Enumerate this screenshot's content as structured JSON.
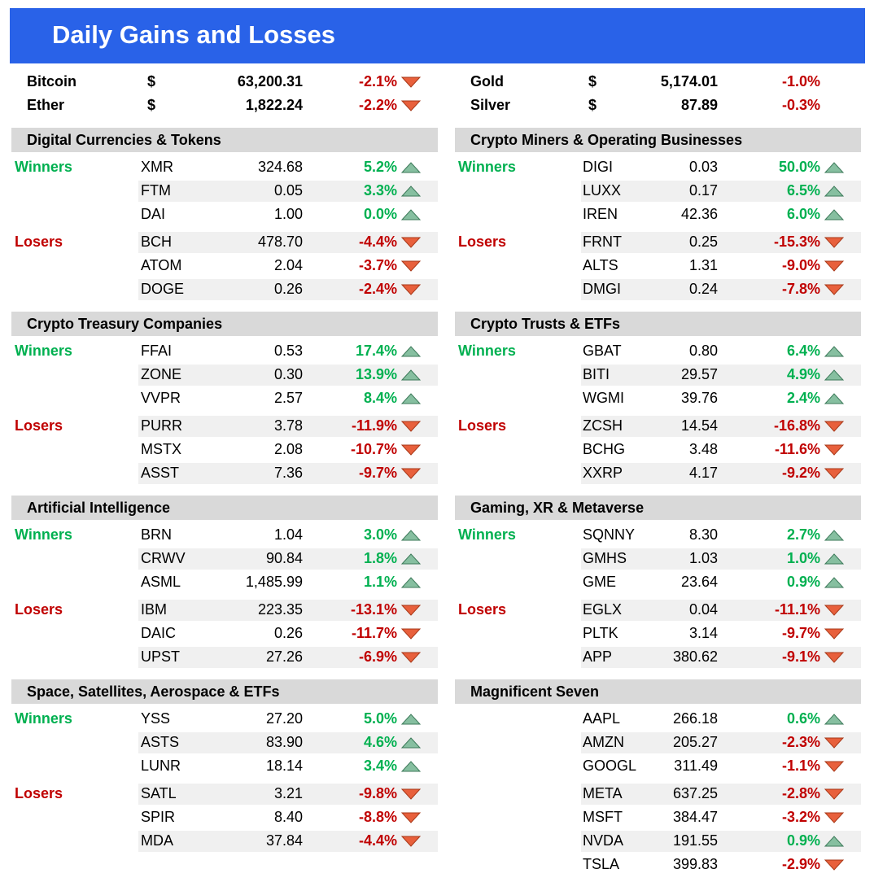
{
  "header": {
    "title": "Daily Gains and Losses"
  },
  "top": [
    {
      "arrows": true,
      "rows": [
        {
          "name": "Bitcoin",
          "currency": "$",
          "price": "63,200.31",
          "change": "-2.1%"
        },
        {
          "name": "Ether",
          "currency": "$",
          "price": "1,822.24",
          "change": "-2.2%"
        }
      ]
    },
    {
      "arrows": false,
      "rows": [
        {
          "name": "Gold",
          "currency": "$",
          "price": "5,174.01",
          "change": "-1.0%"
        },
        {
          "name": "Silver",
          "currency": "$",
          "price": "87.89",
          "change": "-0.3%"
        }
      ]
    }
  ],
  "sections": [
    {
      "title": "Digital Currencies & Tokens",
      "groups": [
        {
          "label": "Winners",
          "rows": [
            {
              "ticker": "XMR",
              "price": "324.68",
              "change": "5.2%"
            },
            {
              "ticker": "FTM",
              "price": "0.05",
              "change": "3.3%"
            },
            {
              "ticker": "DAI",
              "price": "1.00",
              "change": "0.0%"
            }
          ]
        },
        {
          "label": "Losers",
          "rows": [
            {
              "ticker": "BCH",
              "price": "478.70",
              "change": "-4.4%"
            },
            {
              "ticker": "ATOM",
              "price": "2.04",
              "change": "-3.7%"
            },
            {
              "ticker": "DOGE",
              "price": "0.26",
              "change": "-2.4%"
            }
          ]
        }
      ]
    },
    {
      "title": "Crypto Miners & Operating Businesses",
      "groups": [
        {
          "label": "Winners",
          "rows": [
            {
              "ticker": "DIGI",
              "price": "0.03",
              "change": "50.0%"
            },
            {
              "ticker": "LUXX",
              "price": "0.17",
              "change": "6.5%"
            },
            {
              "ticker": "IREN",
              "price": "42.36",
              "change": "6.0%"
            }
          ]
        },
        {
          "label": "Losers",
          "rows": [
            {
              "ticker": "FRNT",
              "price": "0.25",
              "change": "-15.3%"
            },
            {
              "ticker": "ALTS",
              "price": "1.31",
              "change": "-9.0%"
            },
            {
              "ticker": "DMGI",
              "price": "0.24",
              "change": "-7.8%"
            }
          ]
        }
      ]
    },
    {
      "title": "Crypto Treasury Companies",
      "groups": [
        {
          "label": "Winners",
          "rows": [
            {
              "ticker": "FFAI",
              "price": "0.53",
              "change": "17.4%"
            },
            {
              "ticker": "ZONE",
              "price": "0.30",
              "change": "13.9%"
            },
            {
              "ticker": "VVPR",
              "price": "2.57",
              "change": "8.4%"
            }
          ]
        },
        {
          "label": "Losers",
          "rows": [
            {
              "ticker": "PURR",
              "price": "3.78",
              "change": "-11.9%"
            },
            {
              "ticker": "MSTX",
              "price": "2.08",
              "change": "-10.7%"
            },
            {
              "ticker": "ASST",
              "price": "7.36",
              "change": "-9.7%"
            }
          ]
        }
      ]
    },
    {
      "title": "Crypto Trusts & ETFs",
      "groups": [
        {
          "label": "Winners",
          "rows": [
            {
              "ticker": "GBAT",
              "price": "0.80",
              "change": "6.4%"
            },
            {
              "ticker": "BITI",
              "price": "29.57",
              "change": "4.9%"
            },
            {
              "ticker": "WGMI",
              "price": "39.76",
              "change": "2.4%"
            }
          ]
        },
        {
          "label": "Losers",
          "rows": [
            {
              "ticker": "ZCSH",
              "price": "14.54",
              "change": "-16.8%"
            },
            {
              "ticker": "BCHG",
              "price": "3.48",
              "change": "-11.6%"
            },
            {
              "ticker": "XXRP",
              "price": "4.17",
              "change": "-9.2%"
            }
          ]
        }
      ]
    },
    {
      "title": "Artificial Intelligence",
      "groups": [
        {
          "label": "Winners",
          "rows": [
            {
              "ticker": "BRN",
              "price": "1.04",
              "change": "3.0%"
            },
            {
              "ticker": "CRWV",
              "price": "90.84",
              "change": "1.8%"
            },
            {
              "ticker": "ASML",
              "price": "1,485.99",
              "change": "1.1%"
            }
          ]
        },
        {
          "label": "Losers",
          "rows": [
            {
              "ticker": "IBM",
              "price": "223.35",
              "change": "-13.1%"
            },
            {
              "ticker": "DAIC",
              "price": "0.26",
              "change": "-11.7%"
            },
            {
              "ticker": "UPST",
              "price": "27.26",
              "change": "-6.9%"
            }
          ]
        }
      ]
    },
    {
      "title": "Gaming, XR & Metaverse",
      "groups": [
        {
          "label": "Winners",
          "rows": [
            {
              "ticker": "SQNNY",
              "price": "8.30",
              "change": "2.7%"
            },
            {
              "ticker": "GMHS",
              "price": "1.03",
              "change": "1.0%"
            },
            {
              "ticker": "GME",
              "price": "23.64",
              "change": "0.9%"
            }
          ]
        },
        {
          "label": "Losers",
          "rows": [
            {
              "ticker": "EGLX",
              "price": "0.04",
              "change": "-11.1%"
            },
            {
              "ticker": "PLTK",
              "price": "3.14",
              "change": "-9.7%"
            },
            {
              "ticker": "APP",
              "price": "380.62",
              "change": "-9.1%"
            }
          ]
        }
      ]
    },
    {
      "title": "Space, Satellites,  Aerospace & ETFs",
      "groups": [
        {
          "label": "Winners",
          "rows": [
            {
              "ticker": "YSS",
              "price": "27.20",
              "change": "5.0%"
            },
            {
              "ticker": "ASTS",
              "price": "83.90",
              "change": "4.6%"
            },
            {
              "ticker": "LUNR",
              "price": "18.14",
              "change": "3.4%"
            }
          ]
        },
        {
          "label": "Losers",
          "rows": [
            {
              "ticker": "SATL",
              "price": "3.21",
              "change": "-9.8%"
            },
            {
              "ticker": "SPIR",
              "price": "8.40",
              "change": "-8.8%"
            },
            {
              "ticker": "MDA",
              "price": "37.84",
              "change": "-4.4%"
            }
          ]
        }
      ]
    },
    {
      "title": "Magnificent Seven",
      "groups": [
        {
          "rows": [
            {
              "ticker": "AAPL",
              "price": "266.18",
              "change": "0.6%"
            },
            {
              "ticker": "AMZN",
              "price": "205.27",
              "change": "-2.3%"
            },
            {
              "ticker": "GOOGL",
              "price": "311.49",
              "change": "-1.1%"
            }
          ]
        },
        {
          "rows": [
            {
              "ticker": "META",
              "price": "637.25",
              "change": "-2.8%"
            },
            {
              "ticker": "MSFT",
              "price": "384.47",
              "change": "-3.2%"
            },
            {
              "ticker": "NVDA",
              "price": "191.55",
              "change": "0.9%"
            },
            {
              "ticker": "TSLA",
              "price": "399.83",
              "change": "-2.9%"
            }
          ]
        }
      ]
    }
  ]
}
